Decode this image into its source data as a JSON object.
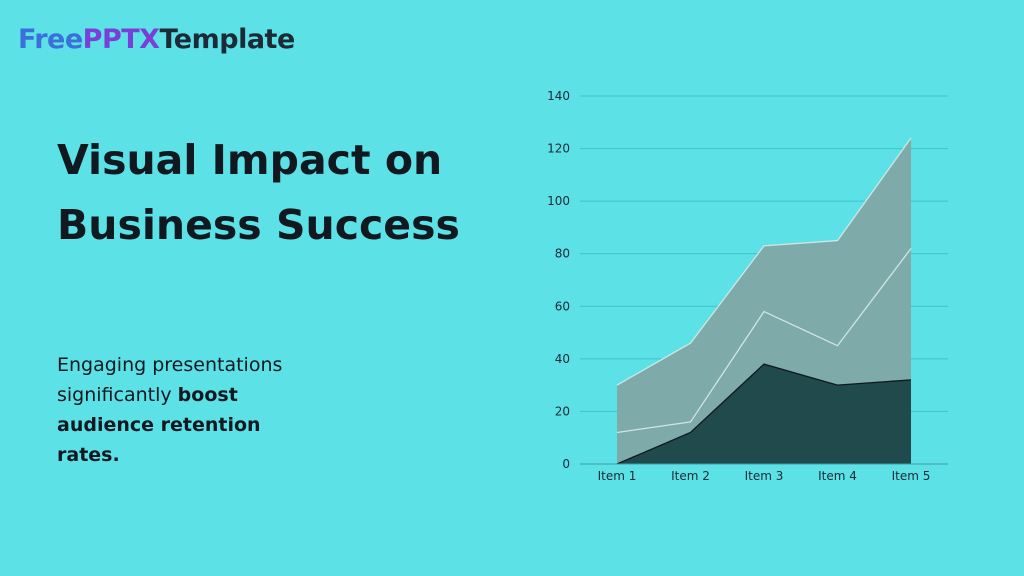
{
  "brand": {
    "part1": "Free",
    "part2": "PPTX",
    "part3": "Template"
  },
  "slide": {
    "title": "Visual Impact on Business Success",
    "body_plain": "Engaging presentations significantly ",
    "body_bold": "boost audience retention rates."
  },
  "colors": {
    "background": "#5ce1e6",
    "grid": "#3cc3c9",
    "total_fill": "#7eaaa9",
    "series1_fill": "#214a4d",
    "series_line_light": "#cfe6e4"
  },
  "chart_data": {
    "type": "area",
    "stacked": true,
    "categories": [
      "Item 1",
      "Item 2",
      "Item 3",
      "Item 4",
      "Item 5"
    ],
    "series": [
      {
        "values": [
          0,
          12,
          38,
          30,
          32
        ]
      },
      {
        "values": [
          12,
          4,
          20,
          15,
          50
        ]
      },
      {
        "values": [
          18,
          30,
          25,
          40,
          42
        ]
      }
    ],
    "ylim": [
      0,
      140
    ],
    "yticks": [
      0,
      20,
      40,
      60,
      80,
      100,
      120,
      140
    ],
    "grid": true,
    "title": "",
    "xlabel": "",
    "ylabel": ""
  }
}
